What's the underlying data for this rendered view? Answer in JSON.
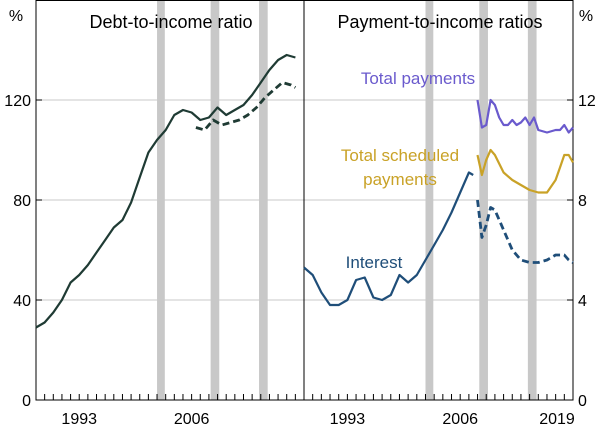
{
  "chart_data": [
    {
      "type": "line",
      "title": "Debt-to-income ratio",
      "ylabel": "%",
      "ylim": [
        0,
        160
      ],
      "yticks": [
        0,
        40,
        80,
        120
      ],
      "xlim": [
        1988,
        2019
      ],
      "xticks": [
        "1993",
        "2006"
      ],
      "shaded_periods": [
        [
          2002.0,
          2002.9
        ],
        [
          2008.2,
          2009.2
        ],
        [
          2013.8,
          2014.8
        ]
      ],
      "series": [
        {
          "name": "",
          "color": "#1f3b34",
          "style": "solid",
          "points": [
            [
              1988.0,
              29
            ],
            [
              1989.0,
              31
            ],
            [
              1990.0,
              35
            ],
            [
              1991.0,
              40
            ],
            [
              1992.0,
              47
            ],
            [
              1993.0,
              50
            ],
            [
              1994.0,
              54
            ],
            [
              1995.0,
              59
            ],
            [
              1996.0,
              64
            ],
            [
              1997.0,
              69
            ],
            [
              1998.0,
              72
            ],
            [
              1999.0,
              79
            ],
            [
              2000.0,
              89
            ],
            [
              2001.0,
              99
            ],
            [
              2002.0,
              104
            ],
            [
              2003.0,
              108
            ],
            [
              2004.0,
              114
            ],
            [
              2005.0,
              116
            ],
            [
              2006.0,
              115
            ],
            [
              2007.0,
              112
            ],
            [
              2008.0,
              113
            ],
            [
              2009.0,
              117
            ],
            [
              2010.0,
              114
            ],
            [
              2011.0,
              116
            ],
            [
              2012.0,
              118
            ],
            [
              2013.0,
              122
            ],
            [
              2014.0,
              127
            ],
            [
              2015.0,
              132
            ],
            [
              2016.0,
              136
            ],
            [
              2017.0,
              138
            ],
            [
              2018.0,
              137
            ]
          ]
        },
        {
          "name": "",
          "color": "#1f3b34",
          "style": "dashed",
          "points": [
            [
              2006.5,
              109
            ],
            [
              2007.5,
              108
            ],
            [
              2008.5,
              112
            ],
            [
              2009.5,
              110
            ],
            [
              2010.5,
              111
            ],
            [
              2011.5,
              112
            ],
            [
              2012.5,
              114
            ],
            [
              2013.5,
              117
            ],
            [
              2014.5,
              121
            ],
            [
              2015.5,
              124
            ],
            [
              2016.5,
              127
            ],
            [
              2017.5,
              126
            ],
            [
              2018.0,
              125
            ]
          ]
        }
      ]
    },
    {
      "type": "line",
      "title": "Payment-to-income ratios",
      "ylabel": "%",
      "ylim": [
        0,
        16
      ],
      "yticks": [
        0,
        4,
        8,
        12
      ],
      "xlim": [
        1988,
        2019
      ],
      "xticks": [
        "1993",
        "2006",
        "2019"
      ],
      "shaded_periods": [
        [
          2002.0,
          2002.9
        ],
        [
          2008.2,
          2009.2
        ],
        [
          2013.8,
          2014.8
        ]
      ],
      "series": [
        {
          "name": "Total payments",
          "color": "#6a5acd",
          "style": "solid",
          "points": [
            [
              2008.0,
              12.0
            ],
            [
              2008.5,
              10.9
            ],
            [
              2009.0,
              11.0
            ],
            [
              2009.5,
              12.0
            ],
            [
              2010.0,
              11.8
            ],
            [
              2010.5,
              11.3
            ],
            [
              2011.0,
              11.0
            ],
            [
              2011.5,
              11.0
            ],
            [
              2012.0,
              11.2
            ],
            [
              2012.5,
              11.0
            ],
            [
              2013.0,
              11.1
            ],
            [
              2013.5,
              11.3
            ],
            [
              2014.0,
              11.0
            ],
            [
              2014.5,
              11.3
            ],
            [
              2015.0,
              10.8
            ],
            [
              2016.0,
              10.7
            ],
            [
              2017.0,
              10.8
            ],
            [
              2017.5,
              10.8
            ],
            [
              2018.0,
              11.0
            ],
            [
              2018.5,
              10.7
            ],
            [
              2019.0,
              10.9
            ]
          ]
        },
        {
          "name": "Total scheduled payments",
          "color": "#c9a227",
          "style": "solid",
          "points": [
            [
              2008.0,
              9.8
            ],
            [
              2008.5,
              9.0
            ],
            [
              2009.0,
              9.6
            ],
            [
              2009.5,
              10.0
            ],
            [
              2010.0,
              9.8
            ],
            [
              2011.0,
              9.1
            ],
            [
              2012.0,
              8.8
            ],
            [
              2013.0,
              8.6
            ],
            [
              2014.0,
              8.4
            ],
            [
              2015.0,
              8.3
            ],
            [
              2016.0,
              8.3
            ],
            [
              2017.0,
              8.8
            ],
            [
              2017.5,
              9.3
            ],
            [
              2018.0,
              9.8
            ],
            [
              2018.5,
              9.8
            ],
            [
              2019.0,
              9.5
            ]
          ]
        },
        {
          "name": "Interest",
          "color": "#1f4e79",
          "style": "solid",
          "points": [
            [
              1988.0,
              5.3
            ],
            [
              1989.0,
              5.0
            ],
            [
              1990.0,
              4.3
            ],
            [
              1991.0,
              3.8
            ],
            [
              1992.0,
              3.8
            ],
            [
              1993.0,
              4.0
            ],
            [
              1994.0,
              4.8
            ],
            [
              1995.0,
              4.9
            ],
            [
              1996.0,
              4.1
            ],
            [
              1997.0,
              4.0
            ],
            [
              1998.0,
              4.2
            ],
            [
              1999.0,
              5.0
            ],
            [
              2000.0,
              4.7
            ],
            [
              2001.0,
              5.0
            ],
            [
              2002.0,
              5.6
            ],
            [
              2003.0,
              6.2
            ],
            [
              2004.0,
              6.8
            ],
            [
              2005.0,
              7.5
            ],
            [
              2006.0,
              8.3
            ],
            [
              2007.0,
              9.1
            ],
            [
              2007.5,
              9.0
            ]
          ]
        },
        {
          "name": "",
          "color": "#1f4e79",
          "style": "dashed",
          "points": [
            [
              2008.0,
              8.0
            ],
            [
              2008.5,
              6.5
            ],
            [
              2009.0,
              7.0
            ],
            [
              2009.5,
              7.7
            ],
            [
              2010.0,
              7.6
            ],
            [
              2011.0,
              6.8
            ],
            [
              2012.0,
              6.0
            ],
            [
              2013.0,
              5.6
            ],
            [
              2014.0,
              5.5
            ],
            [
              2015.0,
              5.5
            ],
            [
              2016.0,
              5.6
            ],
            [
              2017.0,
              5.8
            ],
            [
              2018.0,
              5.8
            ],
            [
              2018.5,
              5.6
            ],
            [
              2019.0,
              5.5
            ]
          ]
        }
      ]
    }
  ]
}
